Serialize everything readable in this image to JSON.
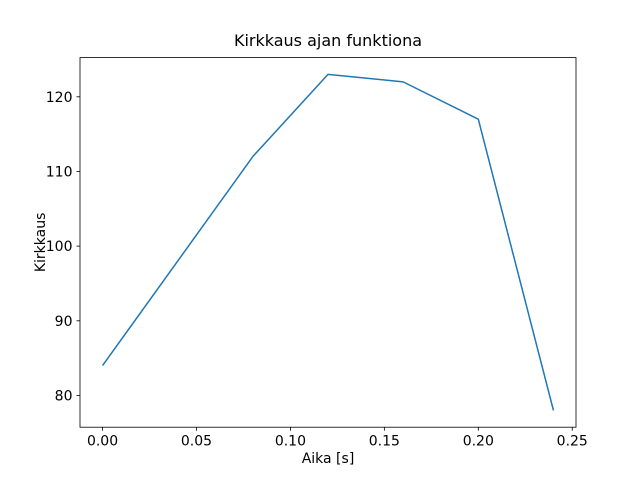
{
  "figure": {
    "background": "#ffffff"
  },
  "chart_data": {
    "type": "line",
    "title": "Kirkkaus ajan funktiona",
    "xlabel": "Aika [s]",
    "ylabel": "Kirkkaus",
    "x": [
      0.0,
      0.04,
      0.08,
      0.12,
      0.16,
      0.2,
      0.24
    ],
    "y": [
      84,
      98,
      112,
      123,
      122,
      117,
      78
    ],
    "series": [
      {
        "name": "Kirkkaus",
        "values": [
          84,
          98,
          112,
          123,
          122,
          117,
          78
        ]
      }
    ],
    "xlim": [
      -0.012,
      0.252
    ],
    "ylim": [
      75.75,
      125.25
    ],
    "xticks": [
      0.0,
      0.05,
      0.1,
      0.15,
      0.2,
      0.25
    ],
    "xtick_labels": [
      "0.00",
      "0.05",
      "0.10",
      "0.15",
      "0.20",
      "0.25"
    ],
    "yticks": [
      80,
      90,
      100,
      110,
      120
    ],
    "ytick_labels": [
      "80",
      "90",
      "100",
      "110",
      "120"
    ],
    "line_color": "#1f77b4",
    "spine_color": "#000000",
    "grid": false,
    "legend": "none",
    "markers": "none"
  }
}
